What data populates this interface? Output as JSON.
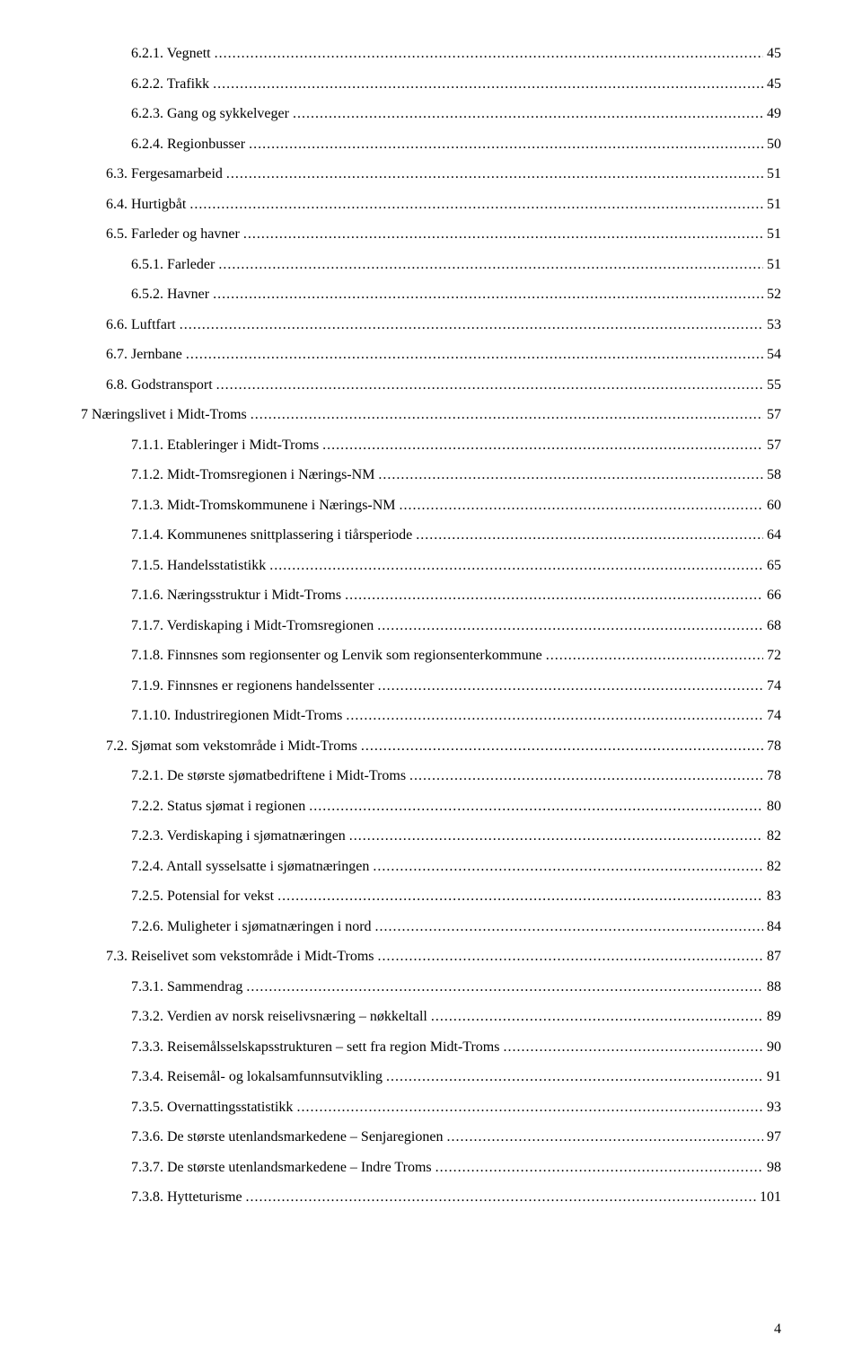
{
  "page_footer": "4",
  "fontsize": 16,
  "font_family": "Times New Roman",
  "text_color": "#000000",
  "background_color": "#ffffff",
  "toc": [
    {
      "label": "6.2.1. Vegnett",
      "page": "45",
      "indent": 2
    },
    {
      "label": "6.2.2. Trafikk",
      "page": "45",
      "indent": 2
    },
    {
      "label": "6.2.3. Gang og sykkelveger",
      "page": "49",
      "indent": 2
    },
    {
      "label": "6.2.4. Regionbusser",
      "page": "50",
      "indent": 2
    },
    {
      "label": "6.3. Fergesamarbeid",
      "page": "51",
      "indent": 1
    },
    {
      "label": "6.4. Hurtigbåt",
      "page": "51",
      "indent": 1
    },
    {
      "label": "6.5. Farleder og havner",
      "page": "51",
      "indent": 1
    },
    {
      "label": "6.5.1. Farleder",
      "page": "51",
      "indent": 2
    },
    {
      "label": "6.5.2. Havner",
      "page": "52",
      "indent": 2
    },
    {
      "label": "6.6. Luftfart",
      "page": "53",
      "indent": 1
    },
    {
      "label": "6.7. Jernbane",
      "page": "54",
      "indent": 1
    },
    {
      "label": "6.8. Godstransport",
      "page": "55",
      "indent": 1
    },
    {
      "label": "7   Næringslivet i Midt-Troms",
      "page": "57",
      "indent": 0
    },
    {
      "label": "7.1.1. Etableringer i Midt-Troms",
      "page": "57",
      "indent": 2
    },
    {
      "label": "7.1.2. Midt-Tromsregionen i Nærings-NM",
      "page": "58",
      "indent": 2
    },
    {
      "label": "7.1.3. Midt-Tromskommunene i Nærings-NM",
      "page": "60",
      "indent": 2
    },
    {
      "label": "7.1.4. Kommunenes snittplassering i tiårsperiode",
      "page": "64",
      "indent": 2
    },
    {
      "label": "7.1.5. Handelsstatistikk",
      "page": "65",
      "indent": 2
    },
    {
      "label": "7.1.6. Næringsstruktur i Midt-Troms",
      "page": "66",
      "indent": 2
    },
    {
      "label": "7.1.7. Verdiskaping i Midt-Tromsregionen",
      "page": "68",
      "indent": 2
    },
    {
      "label": "7.1.8. Finnsnes som regionsenter og Lenvik som regionsenterkommune",
      "page": "72",
      "indent": 2
    },
    {
      "label": "7.1.9. Finnsnes er regionens handelssenter",
      "page": "74",
      "indent": 2
    },
    {
      "label": "7.1.10. Industriregionen Midt-Troms",
      "page": "74",
      "indent": 2
    },
    {
      "label": "7.2. Sjømat som vekstområde i Midt-Troms",
      "page": "78",
      "indent": 1
    },
    {
      "label": "7.2.1. De største sjømatbedriftene i Midt-Troms",
      "page": "78",
      "indent": 2
    },
    {
      "label": "7.2.2. Status sjømat i regionen",
      "page": "80",
      "indent": 2
    },
    {
      "label": "7.2.3. Verdiskaping i sjømatnæringen",
      "page": "82",
      "indent": 2
    },
    {
      "label": "7.2.4. Antall sysselsatte i sjømatnæringen",
      "page": "82",
      "indent": 2
    },
    {
      "label": "7.2.5. Potensial for vekst",
      "page": "83",
      "indent": 2
    },
    {
      "label": "7.2.6. Muligheter i sjømatnæringen i nord",
      "page": "84",
      "indent": 2
    },
    {
      "label": "7.3. Reiselivet som vekstområde i Midt-Troms",
      "page": "87",
      "indent": 1
    },
    {
      "label": "7.3.1. Sammendrag",
      "page": "88",
      "indent": 2
    },
    {
      "label": "7.3.2. Verdien av norsk reiselivsnæring – nøkkeltall",
      "page": "89",
      "indent": 2
    },
    {
      "label": "7.3.3. Reisemålsselskapsstrukturen – sett fra region Midt-Troms",
      "page": "90",
      "indent": 2
    },
    {
      "label": "7.3.4. Reisemål- og lokalsamfunnsutvikling",
      "page": "91",
      "indent": 2
    },
    {
      "label": "7.3.5. Overnattingsstatistikk",
      "page": "93",
      "indent": 2
    },
    {
      "label": "7.3.6. De største utenlandsmarkedene – Senjaregionen",
      "page": "97",
      "indent": 2
    },
    {
      "label": "7.3.7. De største utenlandsmarkedene – Indre Troms",
      "page": "98",
      "indent": 2
    },
    {
      "label": "7.3.8. Hytteturisme",
      "page": "101",
      "indent": 2
    }
  ]
}
